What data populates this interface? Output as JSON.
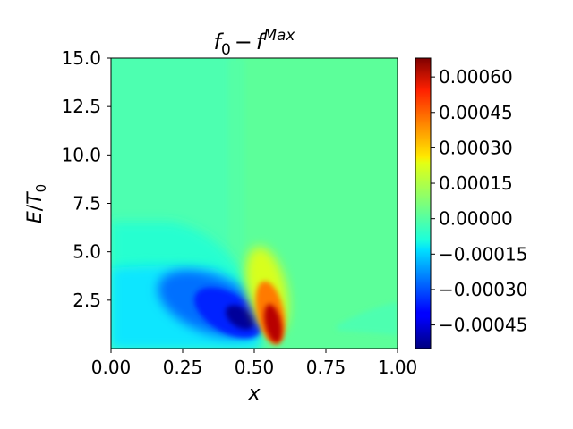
{
  "chart_data": {
    "type": "heatmap",
    "title": {
      "base": "f",
      "base_sub": "0",
      "minus": "−",
      "second": "f",
      "second_sup": "Max"
    },
    "xlabel": "x",
    "ylabel": {
      "num": "E",
      "slash": "/",
      "den": "T",
      "den_sub": "0"
    },
    "xlim": [
      0.0,
      1.0
    ],
    "ylim": [
      0.0,
      15.0
    ],
    "x_ticks": [
      0.0,
      0.25,
      0.5,
      0.75,
      1.0
    ],
    "x_tick_labels": [
      "0.00",
      "0.25",
      "0.50",
      "0.75",
      "1.00"
    ],
    "y_ticks": [
      2.5,
      5.0,
      7.5,
      10.0,
      12.5,
      15.0
    ],
    "y_tick_labels": [
      "2.5",
      "5.0",
      "7.5",
      "10.0",
      "12.5",
      "15.0"
    ],
    "colorbar": {
      "colormap": "jet",
      "range": [
        -0.00055,
        0.00068
      ],
      "ticks": [
        -0.00045,
        -0.0003,
        -0.00015,
        0.0,
        0.00015,
        0.0003,
        0.00045,
        0.0006
      ],
      "tick_labels": [
        "−0.00045",
        "−0.00030",
        "−0.00015",
        "0.00000",
        "0.00015",
        "0.00030",
        "0.00045",
        "0.00060"
      ]
    },
    "grid": false,
    "features": [
      {
        "kind": "minimum",
        "x": 0.45,
        "y": 1.2,
        "value": -0.00052
      },
      {
        "kind": "maximum",
        "x": 0.57,
        "y": 1.0,
        "value": 0.00066
      },
      {
        "kind": "background",
        "x_range": [
          0.0,
          0.45
        ],
        "value": -4e-05
      },
      {
        "kind": "background",
        "x_range": [
          0.55,
          1.0
        ],
        "value": 2e-05
      }
    ]
  }
}
